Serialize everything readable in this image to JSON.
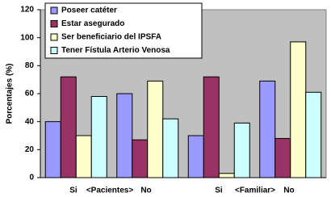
{
  "chart_data": {
    "type": "bar",
    "y_label": "Porcentajes (%)",
    "categories": [
      "Si",
      "No",
      "Si",
      "No"
    ],
    "group_labels": [
      "<Pacientes>",
      "<Familiar>"
    ],
    "series": [
      {
        "name": "Poseer catéter",
        "color": "#9999ff",
        "values": [
          40,
          60,
          30,
          69
        ]
      },
      {
        "name": "Estar asegurado",
        "color": "#993366",
        "values": [
          72,
          27,
          72,
          28
        ]
      },
      {
        "name": "Ser beneficiario del IPSFA",
        "color": "#ffffcc",
        "values": [
          30,
          69,
          3,
          97
        ]
      },
      {
        "name": "Tener Fístula Arterio Venosa",
        "color": "#ccffff",
        "values": [
          58,
          42,
          39,
          61
        ]
      }
    ],
    "ylim": [
      0,
      120
    ],
    "yticks": [
      0,
      20,
      40,
      60,
      80,
      100,
      120
    ],
    "legend": "top-left",
    "plot_background": "#c0c0c0"
  }
}
